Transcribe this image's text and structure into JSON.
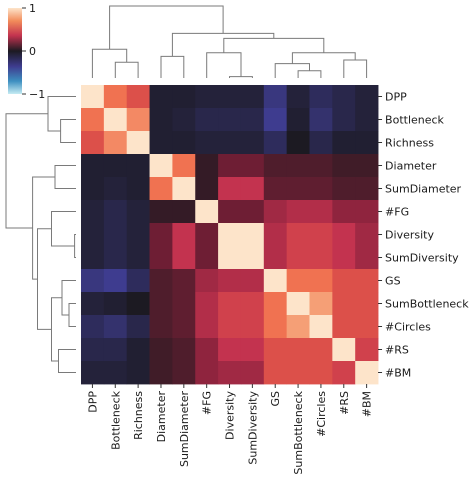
{
  "chart_data": {
    "type": "heatmap",
    "subtype": "clustermap",
    "labels": [
      "DPP",
      "Bottleneck",
      "Richness",
      "Diameter",
      "SumDiameter",
      "#FG",
      "Diversity",
      "SumDiversity",
      "GS",
      "SumBottleneck",
      "#Circles",
      "#RS",
      "#BM"
    ],
    "matrix": [
      [
        1.0,
        0.75,
        0.65,
        -0.1,
        -0.1,
        -0.15,
        -0.15,
        -0.15,
        -0.35,
        -0.15,
        -0.25,
        -0.2,
        -0.15
      ],
      [
        0.75,
        1.0,
        0.8,
        -0.1,
        -0.15,
        -0.2,
        -0.2,
        -0.2,
        -0.4,
        -0.1,
        -0.3,
        -0.2,
        -0.15
      ],
      [
        0.65,
        0.8,
        1.0,
        -0.1,
        -0.1,
        -0.15,
        -0.15,
        -0.15,
        -0.25,
        0.0,
        -0.2,
        -0.1,
        -0.1
      ],
      [
        -0.1,
        -0.1,
        -0.1,
        1.0,
        0.75,
        0.1,
        0.3,
        0.3,
        0.2,
        0.2,
        0.2,
        0.15,
        0.15
      ],
      [
        -0.1,
        -0.15,
        -0.1,
        0.75,
        1.0,
        0.1,
        0.55,
        0.55,
        0.25,
        0.25,
        0.25,
        0.2,
        0.2
      ],
      [
        -0.15,
        -0.2,
        -0.15,
        0.1,
        0.1,
        1.0,
        0.3,
        0.3,
        0.45,
        0.5,
        0.5,
        0.4,
        0.4
      ],
      [
        -0.15,
        -0.2,
        -0.15,
        0.3,
        0.55,
        0.3,
        1.0,
        1.0,
        0.5,
        0.6,
        0.6,
        0.55,
        0.45
      ],
      [
        -0.15,
        -0.2,
        -0.15,
        0.3,
        0.55,
        0.3,
        1.0,
        1.0,
        0.5,
        0.6,
        0.6,
        0.55,
        0.45
      ],
      [
        -0.35,
        -0.4,
        -0.25,
        0.2,
        0.25,
        0.45,
        0.5,
        0.5,
        1.0,
        0.75,
        0.75,
        0.65,
        0.65
      ],
      [
        -0.15,
        -0.1,
        0.0,
        0.2,
        0.25,
        0.5,
        0.6,
        0.6,
        0.75,
        1.0,
        0.85,
        0.65,
        0.65
      ],
      [
        -0.25,
        -0.3,
        -0.2,
        0.2,
        0.25,
        0.5,
        0.6,
        0.6,
        0.75,
        0.85,
        1.0,
        0.65,
        0.65
      ],
      [
        -0.2,
        -0.2,
        -0.1,
        0.15,
        0.2,
        0.4,
        0.55,
        0.55,
        0.65,
        0.65,
        0.65,
        1.0,
        0.6
      ],
      [
        -0.15,
        -0.15,
        -0.1,
        0.15,
        0.2,
        0.4,
        0.45,
        0.45,
        0.65,
        0.65,
        0.65,
        0.6,
        1.0
      ]
    ],
    "colorbar": {
      "min": -1,
      "max": 1,
      "ticks": [
        "1",
        "0",
        "−1"
      ],
      "colormap": "icefire"
    },
    "dendrograms": [
      "top",
      "left"
    ],
    "xlabel": "",
    "ylabel": "",
    "title": ""
  }
}
